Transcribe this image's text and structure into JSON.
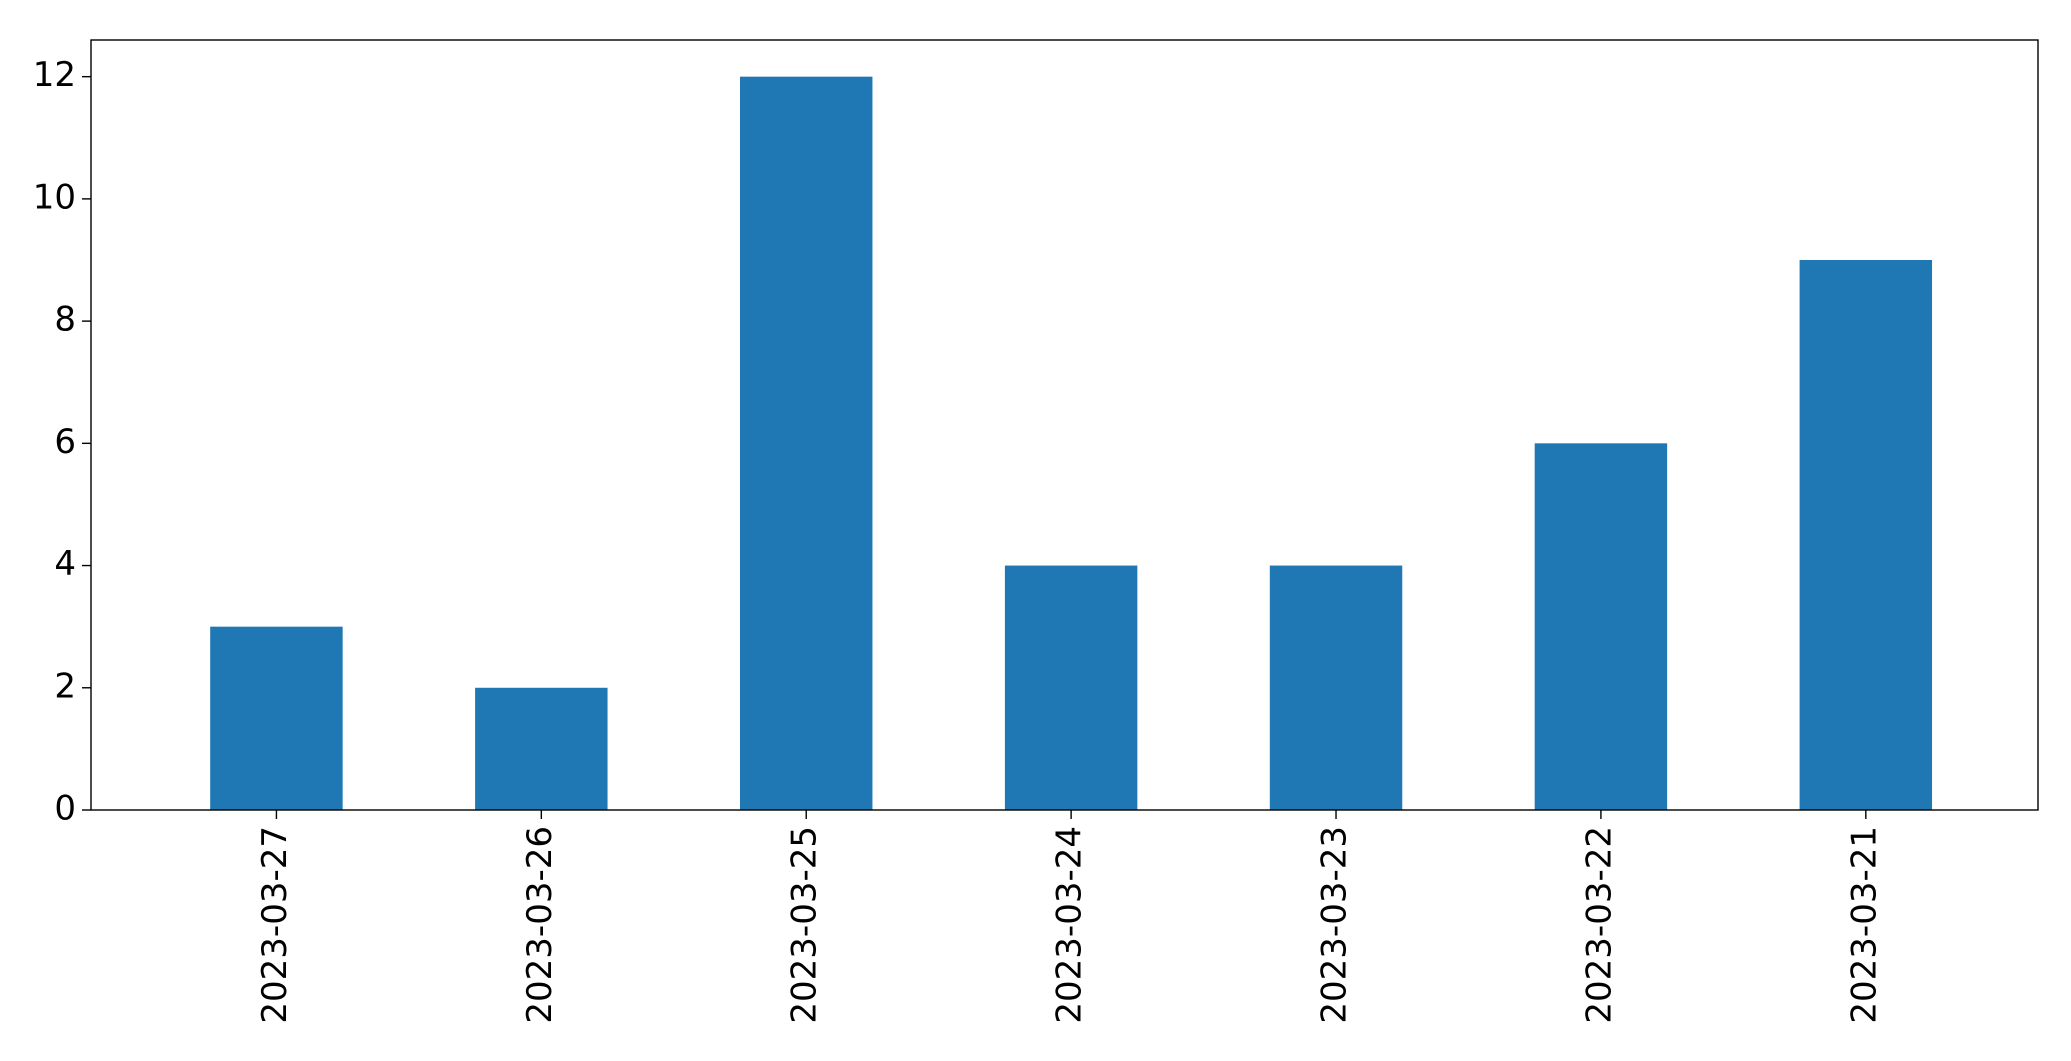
{
  "chart_data": {
    "type": "bar",
    "title": "",
    "xlabel": "",
    "ylabel": "",
    "categories": [
      "2023-03-27",
      "2023-03-26",
      "2023-03-25",
      "2023-03-24",
      "2023-03-23",
      "2023-03-22",
      "2023-03-21"
    ],
    "values": [
      3,
      2,
      12,
      4,
      4,
      6,
      9
    ],
    "ylim": [
      0,
      12.6
    ],
    "yticks": [
      0,
      2,
      4,
      6,
      8,
      10,
      12
    ],
    "grid": false,
    "legend": false,
    "colors": {
      "bar": "#1f77b4",
      "axis": "#000000",
      "background": "#ffffff"
    }
  }
}
